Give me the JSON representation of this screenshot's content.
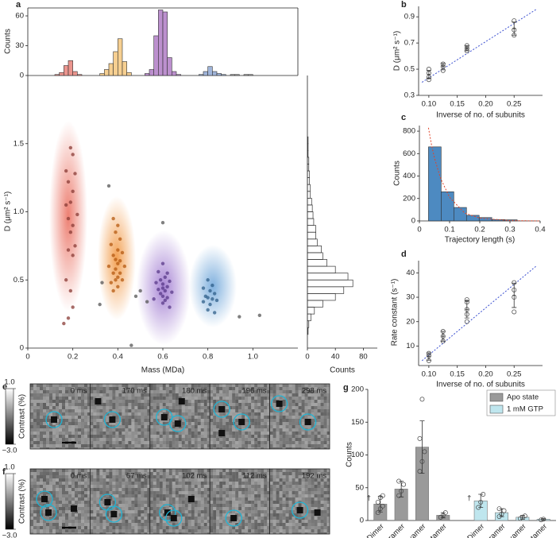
{
  "chart_data": [
    {
      "panel": "a",
      "type": "scatter",
      "xlabel": "Mass (MDa)",
      "ylabel": "D (μm² s⁻¹)",
      "xlim": [
        0,
        1.2
      ],
      "ylim": [
        0,
        2
      ],
      "xticks": [
        0,
        0.2,
        0.4,
        0.6,
        0.8,
        {
          "value": 1,
          "label": "1.0"
        }
      ],
      "yticks": [
        0,
        0.5,
        {
          "value": 1,
          "label": "1.0"
        },
        1.5
      ],
      "marker": "filled",
      "series": [
        {
          "color": "#8a3b36",
          "x": [
            0.19,
            0.2,
            0.17,
            0.18,
            0.21,
            0.2,
            0.19,
            0.17,
            0.22,
            0.18,
            0.2,
            0.19,
            0.21,
            0.18,
            0.2,
            0.17,
            0.19,
            0.2,
            0.18,
            0.16
          ],
          "values": [
            1.47,
            1.42,
            1.3,
            1.22,
            1.28,
            1.15,
            1.07,
            1.05,
            0.98,
            0.95,
            0.9,
            0.85,
            0.75,
            0.72,
            0.68,
            0.5,
            0.42,
            0.3,
            0.22,
            0.18
          ]
        },
        {
          "color": "#b55a10",
          "x": [
            0.38,
            0.4,
            0.39,
            0.41,
            0.37,
            0.4,
            0.42,
            0.38,
            0.39,
            0.41,
            0.4,
            0.36,
            0.43,
            0.39,
            0.38,
            0.41,
            0.4,
            0.39,
            0.42,
            0.37,
            0.4,
            0.38
          ],
          "values": [
            0.95,
            0.9,
            0.85,
            0.8,
            0.76,
            0.72,
            0.7,
            0.68,
            0.65,
            0.64,
            0.62,
            0.6,
            0.6,
            0.58,
            0.55,
            0.55,
            0.52,
            0.5,
            0.5,
            0.48,
            0.45,
            0.42
          ]
        },
        {
          "color": "#5a3a8a",
          "x": [
            0.6,
            0.58,
            0.62,
            0.61,
            0.59,
            0.63,
            0.57,
            0.6,
            0.62,
            0.6,
            0.58,
            0.61,
            0.64,
            0.59,
            0.6,
            0.62,
            0.56,
            0.61,
            0.6,
            0.63
          ],
          "values": [
            0.62,
            0.56,
            0.55,
            0.52,
            0.5,
            0.49,
            0.48,
            0.47,
            0.45,
            0.44,
            0.43,
            0.42,
            0.41,
            0.4,
            0.38,
            0.37,
            0.36,
            0.35,
            0.33,
            0.3
          ]
        },
        {
          "color": "#2f5f8a",
          "x": [
            0.8,
            0.82,
            0.78,
            0.81,
            0.83,
            0.79,
            0.8,
            0.82,
            0.84,
            0.78,
            0.81,
            0.8,
            0.83
          ],
          "values": [
            0.5,
            0.46,
            0.44,
            0.42,
            0.4,
            0.38,
            0.37,
            0.36,
            0.35,
            0.34,
            0.32,
            0.28,
            0.26
          ]
        },
        {
          "color": "#555555",
          "x": [
            0.36,
            0.33,
            0.32,
            0.46,
            0.5,
            0.53,
            0.48,
            0.6,
            0.94,
            1.03
          ],
          "values": [
            1.19,
            0.48,
            0.32,
            0.02,
            0.42,
            0.34,
            0.38,
            0.92,
            0.23,
            0.24
          ]
        }
      ]
    },
    {
      "type": "histogram",
      "ylabel": "Counts",
      "xlim": [
        0,
        1.2
      ],
      "ylim": [
        0,
        68
      ],
      "yticks": [
        0,
        30,
        60
      ],
      "series": [
        {
          "color": "#e8827a",
          "bins": [
            0.12,
            0.14,
            0.16,
            0.18,
            0.2,
            0.22,
            0.24
          ],
          "values": [
            1,
            3,
            10,
            15,
            4,
            1
          ]
        },
        {
          "color": "#f5c77e",
          "bins": [
            0.32,
            0.34,
            0.36,
            0.38,
            0.4,
            0.42,
            0.44,
            0.46
          ],
          "values": [
            2,
            6,
            12,
            24,
            37,
            14,
            3
          ]
        },
        {
          "color": "#b07cc6",
          "bins": [
            0.52,
            0.54,
            0.56,
            0.58,
            0.6,
            0.62,
            0.64,
            0.66,
            0.68
          ],
          "values": [
            2,
            6,
            40,
            66,
            64,
            18,
            4,
            1
          ]
        },
        {
          "color": "#8fa8d4",
          "bins": [
            0.76,
            0.78,
            0.8,
            0.82,
            0.84,
            0.86,
            0.88
          ],
          "values": [
            1,
            4,
            9,
            4,
            2,
            1
          ]
        },
        {
          "color": "#999999",
          "bins": [
            0.9,
            0.92,
            0.94,
            0.96,
            0.98,
            1.0
          ],
          "values": [
            1,
            1,
            0,
            1,
            1
          ]
        }
      ]
    },
    {
      "type": "histogram",
      "orientation": "horizontal",
      "xlabel": "Counts",
      "xlim": [
        0,
        100
      ],
      "xticks": [
        0,
        40,
        80
      ],
      "ylim": [
        0,
        2
      ],
      "series": [
        {
          "color": "#333333",
          "bins": [
            0.05,
            0.1,
            0.15,
            0.2,
            0.25,
            0.3,
            0.35,
            0.4,
            0.45,
            0.5,
            0.55,
            0.6,
            0.65,
            0.7,
            0.75,
            0.8,
            0.85,
            0.9,
            0.95,
            1.0,
            1.05,
            1.1,
            1.15,
            1.2,
            1.25,
            1.3,
            1.35,
            1.4,
            1.45,
            1.5,
            1.55
          ],
          "values": [
            0,
            1,
            2,
            5,
            10,
            22,
            40,
            52,
            65,
            58,
            40,
            28,
            22,
            20,
            14,
            12,
            12,
            9,
            8,
            7,
            6,
            4,
            4,
            3,
            3,
            2,
            2,
            1,
            1,
            1
          ]
        }
      ]
    },
    {
      "panel": "b",
      "type": "scatter",
      "xlabel": "Inverse of no. of subunits",
      "ylabel": "D (μm² s⁻¹)",
      "xlim": [
        0.082,
        0.3
      ],
      "ylim": [
        0.3,
        0.98
      ],
      "xticks": [
        {
          "value": 0.1,
          "label": "0.10"
        },
        0.15,
        {
          "value": 0.2,
          "label": "0.20"
        },
        0.25
      ],
      "yticks": [
        0.3,
        0.5,
        0.7,
        0.9
      ],
      "marker": "open",
      "series": [
        {
          "color": "#555555",
          "x": [
            0.1,
            0.1,
            0.1,
            0.1,
            0.125,
            0.125,
            0.125,
            0.167,
            0.167,
            0.167,
            0.25,
            0.25,
            0.25
          ],
          "values": [
            0.42,
            0.44,
            0.47,
            0.5,
            0.49,
            0.52,
            0.54,
            0.64,
            0.66,
            0.68,
            0.76,
            0.8,
            0.87
          ]
        }
      ],
      "summary": {
        "color": "#333333",
        "x": [
          0.1,
          0.125,
          0.167,
          0.25
        ],
        "values": [
          0.46,
          0.52,
          0.66,
          0.81
        ],
        "errors": [
          0.03,
          0.025,
          0.02,
          0.05
        ]
      },
      "fit": {
        "color": "#3a4fd0",
        "x": [
          0.088,
          0.29
        ],
        "values": [
          0.4,
          0.96
        ]
      }
    },
    {
      "panel": "c",
      "type": "histogram",
      "xlabel": "Trajectory length (s)",
      "ylabel": "Counts",
      "xlim": [
        0,
        0.4
      ],
      "ylim": [
        0,
        850
      ],
      "xticks": [
        0,
        0.1,
        0.2,
        0.3,
        0.4
      ],
      "yticks": [
        0,
        200,
        400,
        600,
        800
      ],
      "series": [
        {
          "color": "#2e75b6",
          "bins": [
            0.03,
            0.072,
            0.114,
            0.156,
            0.198,
            0.24,
            0.282,
            0.324
          ],
          "values": [
            660,
            260,
            120,
            50,
            30,
            12,
            10
          ]
        }
      ],
      "fit": {
        "color": "#e0442a",
        "x": [
          0.03,
          0.04,
          0.05,
          0.07,
          0.1,
          0.15,
          0.2,
          0.3,
          0.4
        ],
        "values": [
          830,
          680,
          560,
          380,
          210,
          70,
          25,
          3,
          0
        ]
      }
    },
    {
      "panel": "d",
      "type": "scatter",
      "xlabel": "Inverse of no. of subunits",
      "ylabel": "Rate constant (s⁻¹)",
      "xlim": [
        0.082,
        0.3
      ],
      "ylim": [
        2,
        45
      ],
      "xticks": [
        {
          "value": 0.1,
          "label": "0.10"
        },
        0.15,
        {
          "value": 0.2,
          "label": "0.20"
        },
        0.25
      ],
      "yticks": [
        10,
        20,
        30,
        40
      ],
      "marker": "open",
      "series": [
        {
          "color": "#555555",
          "x": [
            0.1,
            0.1,
            0.1,
            0.125,
            0.125,
            0.125,
            0.167,
            0.167,
            0.167,
            0.167,
            0.167,
            0.25,
            0.25,
            0.25,
            0.25
          ],
          "values": [
            4,
            6,
            7,
            12,
            14,
            16,
            20,
            23,
            25,
            28,
            29,
            24,
            30,
            33,
            36
          ]
        }
      ],
      "summary": {
        "color": "#333333",
        "x": [
          0.1,
          0.125,
          0.167,
          0.25
        ],
        "values": [
          5.7,
          14,
          25,
          30.8
        ],
        "errors": [
          1.5,
          2,
          3.5,
          5
        ]
      },
      "fit": {
        "color": "#3a4fd0",
        "x": [
          0.088,
          0.29
        ],
        "values": [
          4,
          43
        ]
      }
    },
    {
      "panel": "g",
      "type": "bar",
      "ylabel": "Counts",
      "ylim": [
        0,
        200
      ],
      "yticks": [
        0,
        50,
        100,
        150,
        200
      ],
      "categories": [
        "Dimer",
        "Tetramer",
        "Hexamer",
        "Octamer",
        "Dimer",
        "Tetramer",
        "Hexamer",
        "Octamer"
      ],
      "annotations": [
        "†",
        "†"
      ],
      "series": [
        {
          "name": "Apo state",
          "color": "#9a9a9a",
          "values": [
            25,
            48,
            112,
            8,
            null,
            null,
            null,
            null
          ],
          "errors": [
            12,
            12,
            40,
            4,
            null,
            null,
            null,
            null
          ],
          "points": [
            [
              12,
              18,
              22,
              28,
              35,
              38
            ],
            [
              38,
              45,
              55,
              60
            ],
            [
              75,
              90,
              105,
              125,
              185
            ],
            [
              5,
              8,
              12
            ],
            null,
            null,
            null,
            null
          ]
        },
        {
          "name": "1 mM GTP",
          "color": "#bfe6ee",
          "values": [
            null,
            null,
            null,
            null,
            30,
            12,
            5,
            2
          ],
          "errors": [
            null,
            null,
            null,
            null,
            10,
            6,
            3,
            1
          ],
          "points": [
            null,
            null,
            null,
            null,
            [
              20,
              28,
              40
            ],
            [
              6,
              10,
              15,
              18
            ],
            [
              3,
              5,
              7
            ],
            [
              1,
              2
            ]
          ]
        }
      ]
    }
  ],
  "image_panels": [
    {
      "panel": "e",
      "times": [
        "0 ms",
        "170 ms",
        "180 ms",
        "196 ms",
        "298 ms"
      ],
      "colorbar": {
        "label": "Contrast (%)",
        "lim": [
          -3,
          1
        ],
        "ticks": [
          {
            "value": 1,
            "label": "1.0"
          },
          {
            "value": -3,
            "label": "−3.0"
          }
        ]
      }
    },
    {
      "panel": "f",
      "times": [
        "0 ms",
        "67 ms",
        "102 ms",
        "112 ms",
        "192 ms"
      ],
      "colorbar": {
        "label": "Contrast (%)",
        "lim": [
          -3,
          1
        ],
        "ticks": [
          {
            "value": 1,
            "label": "1.0"
          },
          {
            "value": -3,
            "label": "−3.0"
          }
        ]
      }
    }
  ]
}
